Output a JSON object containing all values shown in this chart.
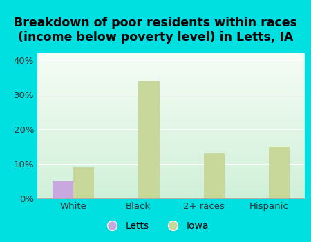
{
  "title": "Breakdown of poor residents within races\n(income below poverty level) in Letts, IA",
  "categories": [
    "White",
    "Black",
    "2+ races",
    "Hispanic"
  ],
  "letts_values": [
    5,
    0,
    0,
    0
  ],
  "iowa_values": [
    9,
    34,
    13,
    15
  ],
  "letts_color": "#c9a8e0",
  "iowa_color": "#c8d89a",
  "background_color": "#00e0e0",
  "plot_bg_top": "#f5fcf5",
  "plot_bg_bottom": "#d0f0d8",
  "ylim": [
    0,
    42
  ],
  "yticks": [
    0,
    10,
    20,
    30,
    40
  ],
  "ytick_labels": [
    "0%",
    "10%",
    "20%",
    "30%",
    "40%"
  ],
  "bar_width": 0.32,
  "title_fontsize": 12.5,
  "tick_fontsize": 9.5,
  "legend_fontsize": 10
}
